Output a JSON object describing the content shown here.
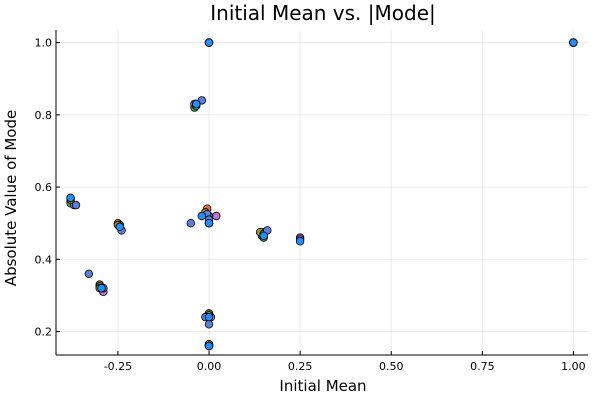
{
  "chart_data": {
    "type": "scatter",
    "title": "Initial Mean vs. |Mode|",
    "xlabel": "Initial Mean",
    "ylabel": "Absolute Value of Mode",
    "xlim": [
      -0.42,
      1.04
    ],
    "ylim": [
      0.135,
      1.035
    ],
    "grid": true,
    "legend": "none",
    "xticks": [
      {
        "value": -0.25,
        "label": "-0.25"
      },
      {
        "value": 0.0,
        "label": "0.00"
      },
      {
        "value": 0.25,
        "label": "0.25"
      },
      {
        "value": 0.5,
        "label": "0.50"
      },
      {
        "value": 0.75,
        "label": "0.75"
      },
      {
        "value": 1.0,
        "label": "1.00"
      }
    ],
    "yticks": [
      {
        "value": 0.2,
        "label": "0.2"
      },
      {
        "value": 0.4,
        "label": "0.4"
      },
      {
        "value": 0.6,
        "label": "0.6"
      },
      {
        "value": 0.8,
        "label": "0.8"
      },
      {
        "value": 1.0,
        "label": "1.0"
      }
    ],
    "series": [
      {
        "color": "#e26f46",
        "points": [
          [
            -0.38,
            0.56
          ],
          [
            -0.25,
            0.5
          ],
          [
            -0.3,
            0.33
          ],
          [
            0.0,
            1.0
          ],
          [
            -0.04,
            0.825
          ],
          [
            -0.005,
            0.54
          ],
          [
            0.0,
            0.5
          ],
          [
            0.0,
            0.25
          ],
          [
            0.0,
            0.165
          ],
          [
            0.15,
            0.475
          ],
          [
            1.0,
            1.0
          ]
        ]
      },
      {
        "color": "#3da44d",
        "points": [
          [
            -0.38,
            0.555
          ],
          [
            -0.245,
            0.495
          ],
          [
            -0.3,
            0.325
          ],
          [
            0.0,
            1.0
          ],
          [
            -0.04,
            0.82
          ],
          [
            -0.01,
            0.53
          ],
          [
            0.0,
            0.505
          ],
          [
            0.0,
            0.245
          ],
          [
            0.0,
            0.165
          ],
          [
            0.145,
            0.465
          ],
          [
            0.15,
            0.46
          ],
          [
            1.0,
            1.0
          ]
        ]
      },
      {
        "color": "#c271d2",
        "points": [
          [
            -0.37,
            0.55
          ],
          [
            -0.245,
            0.49
          ],
          [
            -0.29,
            0.31
          ],
          [
            0.0,
            1.0
          ],
          [
            -0.04,
            0.83
          ],
          [
            0.02,
            0.52
          ],
          [
            0.0,
            0.5
          ],
          [
            0.005,
            0.24
          ],
          [
            0.0,
            0.16
          ],
          [
            0.15,
            0.47
          ],
          [
            0.25,
            0.46
          ],
          [
            1.0,
            1.0
          ]
        ]
      },
      {
        "color": "#ac8e18",
        "points": [
          [
            -0.38,
            0.565
          ],
          [
            -0.25,
            0.495
          ],
          [
            -0.3,
            0.32
          ],
          [
            0.0,
            1.0
          ],
          [
            -0.035,
            0.83
          ],
          [
            -0.01,
            0.53
          ],
          [
            0.0,
            0.5
          ],
          [
            0.0,
            0.25
          ],
          [
            0.0,
            0.165
          ],
          [
            0.14,
            0.475
          ],
          [
            1.0,
            1.0
          ]
        ]
      },
      {
        "color": "#00a9ad",
        "points": [
          [
            -0.38,
            0.57
          ],
          [
            -0.245,
            0.49
          ],
          [
            -0.295,
            0.32
          ],
          [
            0.0,
            1.0
          ],
          [
            -0.035,
            0.825
          ],
          [
            0.0,
            0.52
          ],
          [
            0.0,
            0.5
          ],
          [
            0.0,
            0.245
          ],
          [
            0.0,
            0.16
          ],
          [
            0.15,
            0.47
          ],
          [
            1.0,
            1.0
          ]
        ]
      },
      {
        "color": "#5a7fdc",
        "points": [
          [
            -0.365,
            0.55
          ],
          [
            -0.24,
            0.48
          ],
          [
            -0.33,
            0.36
          ],
          [
            -0.29,
            0.32
          ],
          [
            0.0,
            1.0
          ],
          [
            -0.02,
            0.84
          ],
          [
            -0.05,
            0.5
          ],
          [
            -0.005,
            0.525
          ],
          [
            0.0,
            0.51
          ],
          [
            0.0,
            0.22
          ],
          [
            -0.01,
            0.24
          ],
          [
            0.0,
            0.16
          ],
          [
            0.16,
            0.48
          ],
          [
            0.25,
            0.455
          ],
          [
            1.0,
            1.0
          ]
        ]
      },
      {
        "color": "#1e90ff",
        "points": [
          [
            -0.38,
            0.57
          ],
          [
            -0.245,
            0.49
          ],
          [
            -0.295,
            0.32
          ],
          [
            0.0,
            1.0
          ],
          [
            -0.035,
            0.83
          ],
          [
            -0.02,
            0.52
          ],
          [
            0.0,
            0.5
          ],
          [
            0.0,
            0.24
          ],
          [
            0.0,
            0.16
          ],
          [
            0.15,
            0.465
          ],
          [
            0.25,
            0.45
          ],
          [
            1.0,
            1.0
          ]
        ]
      }
    ]
  }
}
